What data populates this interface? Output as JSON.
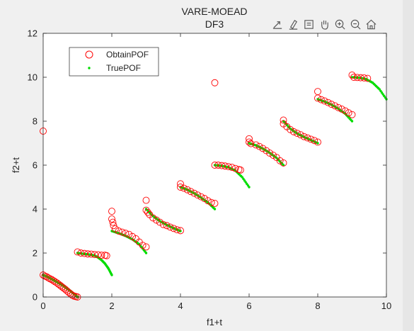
{
  "chart_data": {
    "type": "scatter",
    "title": [
      "VARE-MOEAD",
      "DF3"
    ],
    "xlabel": "f1+t",
    "ylabel": "f2+t",
    "xlim": [
      0,
      10
    ],
    "ylim": [
      0,
      12
    ],
    "xticks": [
      0,
      2,
      4,
      6,
      8,
      10
    ],
    "yticks": [
      0,
      2,
      4,
      6,
      8,
      10,
      12
    ],
    "legend_position": "top-left",
    "series": [
      {
        "name": "ObtainPOF",
        "marker": "open-circle",
        "color": "#ff0000",
        "points": [
          [
            0.0,
            7.55
          ],
          [
            0.0,
            1.0
          ],
          [
            0.05,
            0.95
          ],
          [
            0.1,
            0.92
          ],
          [
            0.15,
            0.87
          ],
          [
            0.2,
            0.83
          ],
          [
            0.25,
            0.79
          ],
          [
            0.3,
            0.74
          ],
          [
            0.35,
            0.69
          ],
          [
            0.4,
            0.64
          ],
          [
            0.45,
            0.58
          ],
          [
            0.5,
            0.52
          ],
          [
            0.55,
            0.46
          ],
          [
            0.6,
            0.4
          ],
          [
            0.65,
            0.34
          ],
          [
            0.7,
            0.27
          ],
          [
            0.75,
            0.2
          ],
          [
            0.8,
            0.14
          ],
          [
            0.85,
            0.08
          ],
          [
            0.9,
            0.04
          ],
          [
            0.95,
            0.02
          ],
          [
            1.0,
            0.0
          ],
          [
            1.0,
            2.05
          ],
          [
            1.1,
            2.0
          ],
          [
            1.2,
            1.98
          ],
          [
            1.3,
            1.96
          ],
          [
            1.4,
            1.95
          ],
          [
            1.5,
            1.93
          ],
          [
            1.6,
            1.92
          ],
          [
            1.7,
            1.9
          ],
          [
            1.8,
            1.9
          ],
          [
            1.85,
            1.88
          ],
          [
            2.0,
            3.9
          ],
          [
            2.0,
            3.55
          ],
          [
            2.03,
            3.4
          ],
          [
            2.05,
            3.25
          ],
          [
            2.1,
            3.1
          ],
          [
            2.2,
            3.0
          ],
          [
            2.3,
            2.95
          ],
          [
            2.4,
            2.9
          ],
          [
            2.5,
            2.85
          ],
          [
            2.6,
            2.75
          ],
          [
            2.7,
            2.65
          ],
          [
            2.8,
            2.5
          ],
          [
            2.9,
            2.35
          ],
          [
            3.0,
            2.28
          ],
          [
            3.0,
            4.4
          ],
          [
            3.0,
            3.95
          ],
          [
            3.05,
            3.85
          ],
          [
            3.1,
            3.75
          ],
          [
            3.2,
            3.6
          ],
          [
            3.3,
            3.5
          ],
          [
            3.4,
            3.4
          ],
          [
            3.5,
            3.3
          ],
          [
            3.6,
            3.25
          ],
          [
            3.7,
            3.18
          ],
          [
            3.8,
            3.12
          ],
          [
            3.9,
            3.06
          ],
          [
            4.0,
            3.02
          ],
          [
            4.0,
            5.15
          ],
          [
            4.0,
            5.0
          ],
          [
            4.1,
            4.95
          ],
          [
            4.2,
            4.88
          ],
          [
            4.3,
            4.8
          ],
          [
            4.4,
            4.72
          ],
          [
            4.5,
            4.64
          ],
          [
            4.6,
            4.56
          ],
          [
            4.7,
            4.48
          ],
          [
            4.8,
            4.38
          ],
          [
            4.9,
            4.3
          ],
          [
            5.0,
            4.26
          ],
          [
            5.0,
            9.75
          ],
          [
            5.0,
            6.0
          ],
          [
            5.1,
            6.0
          ],
          [
            5.2,
            5.98
          ],
          [
            5.3,
            5.96
          ],
          [
            5.4,
            5.93
          ],
          [
            5.5,
            5.9
          ],
          [
            5.6,
            5.85
          ],
          [
            5.7,
            5.8
          ],
          [
            5.75,
            5.78
          ],
          [
            6.0,
            7.2
          ],
          [
            6.0,
            7.05
          ],
          [
            6.05,
            6.98
          ],
          [
            6.2,
            6.92
          ],
          [
            6.3,
            6.85
          ],
          [
            6.4,
            6.76
          ],
          [
            6.5,
            6.66
          ],
          [
            6.6,
            6.55
          ],
          [
            6.7,
            6.45
          ],
          [
            6.8,
            6.35
          ],
          [
            6.9,
            6.2
          ],
          [
            7.0,
            6.1
          ],
          [
            7.0,
            8.05
          ],
          [
            7.0,
            7.88
          ],
          [
            7.1,
            7.75
          ],
          [
            7.2,
            7.62
          ],
          [
            7.3,
            7.52
          ],
          [
            7.4,
            7.45
          ],
          [
            7.5,
            7.38
          ],
          [
            7.6,
            7.3
          ],
          [
            7.7,
            7.24
          ],
          [
            7.8,
            7.18
          ],
          [
            7.9,
            7.12
          ],
          [
            8.0,
            7.05
          ],
          [
            8.0,
            9.35
          ],
          [
            8.0,
            9.05
          ],
          [
            8.1,
            8.98
          ],
          [
            8.2,
            8.92
          ],
          [
            8.3,
            8.85
          ],
          [
            8.4,
            8.77
          ],
          [
            8.5,
            8.7
          ],
          [
            8.6,
            8.62
          ],
          [
            8.7,
            8.55
          ],
          [
            8.8,
            8.47
          ],
          [
            8.9,
            8.38
          ],
          [
            9.0,
            8.3
          ],
          [
            9.0,
            10.1
          ],
          [
            9.05,
            10.0
          ],
          [
            9.15,
            9.99
          ],
          [
            9.25,
            9.98
          ],
          [
            9.35,
            9.97
          ],
          [
            9.45,
            9.95
          ]
        ]
      },
      {
        "name": "TruePOF",
        "marker": "dot",
        "color": "#00dd00",
        "points": [
          [
            0.0,
            1.0
          ],
          [
            0.1,
            0.93
          ],
          [
            0.2,
            0.85
          ],
          [
            0.3,
            0.77
          ],
          [
            0.4,
            0.68
          ],
          [
            0.5,
            0.59
          ],
          [
            0.6,
            0.49
          ],
          [
            0.7,
            0.38
          ],
          [
            0.8,
            0.27
          ],
          [
            0.9,
            0.14
          ],
          [
            1.0,
            0.0
          ],
          [
            1.0,
            2.0
          ],
          [
            1.2,
            1.96
          ],
          [
            1.4,
            1.92
          ],
          [
            1.5,
            1.88
          ],
          [
            1.6,
            1.8
          ],
          [
            1.7,
            1.68
          ],
          [
            1.8,
            1.52
          ],
          [
            1.9,
            1.3
          ],
          [
            2.0,
            1.0
          ],
          [
            2.0,
            3.0
          ],
          [
            2.2,
            2.9
          ],
          [
            2.4,
            2.78
          ],
          [
            2.6,
            2.62
          ],
          [
            2.8,
            2.4
          ],
          [
            3.0,
            2.0
          ],
          [
            3.0,
            4.0
          ],
          [
            3.2,
            3.68
          ],
          [
            3.4,
            3.45
          ],
          [
            3.6,
            3.28
          ],
          [
            3.8,
            3.13
          ],
          [
            4.0,
            3.0
          ],
          [
            4.0,
            5.0
          ],
          [
            4.2,
            4.88
          ],
          [
            4.4,
            4.72
          ],
          [
            4.6,
            4.52
          ],
          [
            4.8,
            4.3
          ],
          [
            5.0,
            4.0
          ],
          [
            5.0,
            6.0
          ],
          [
            5.2,
            5.97
          ],
          [
            5.4,
            5.9
          ],
          [
            5.6,
            5.75
          ],
          [
            5.8,
            5.45
          ],
          [
            6.0,
            5.0
          ],
          [
            6.0,
            7.0
          ],
          [
            6.2,
            6.9
          ],
          [
            6.4,
            6.75
          ],
          [
            6.6,
            6.56
          ],
          [
            6.8,
            6.33
          ],
          [
            7.0,
            6.0
          ],
          [
            7.0,
            8.0
          ],
          [
            7.2,
            7.66
          ],
          [
            7.4,
            7.44
          ],
          [
            7.6,
            7.28
          ],
          [
            7.8,
            7.14
          ],
          [
            8.0,
            7.0
          ],
          [
            8.0,
            9.0
          ],
          [
            8.2,
            8.89
          ],
          [
            8.4,
            8.75
          ],
          [
            8.6,
            8.57
          ],
          [
            8.8,
            8.34
          ],
          [
            9.0,
            8.0
          ],
          [
            9.0,
            10.0
          ],
          [
            9.2,
            9.98
          ],
          [
            9.4,
            9.92
          ],
          [
            9.6,
            9.75
          ],
          [
            9.8,
            9.45
          ],
          [
            10.0,
            9.0
          ]
        ]
      }
    ]
  },
  "toolbar": {
    "icons": [
      "export-icon",
      "brush-icon",
      "datatip-icon",
      "pan-icon",
      "zoom-in-icon",
      "zoom-out-icon",
      "home-icon"
    ]
  }
}
